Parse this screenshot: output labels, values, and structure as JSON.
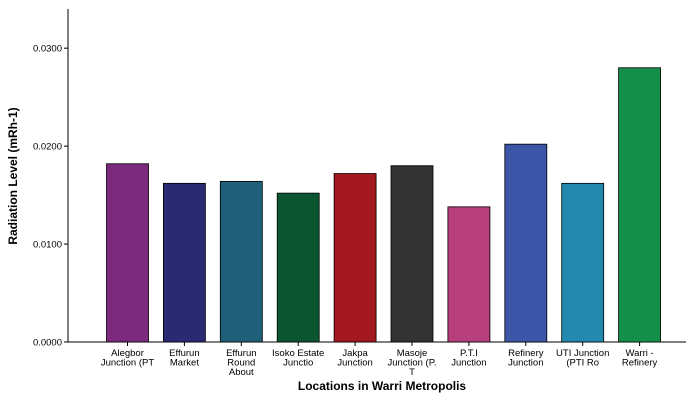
{
  "chart_data": {
    "type": "bar",
    "xlabel": "Locations in Warri Metropolis",
    "ylabel": "Radiation Level (mRh-1)",
    "ylim": [
      0,
      0.034
    ],
    "yticks": [
      "0.0000",
      "0.0100",
      "0.0200",
      "0.0300"
    ],
    "grid": false,
    "categories": [
      [
        "Alegbor",
        "Junction (PT"
      ],
      [
        "Effurun",
        "Market"
      ],
      [
        "Effurun",
        "Round",
        "About"
      ],
      [
        "Isoko Estate",
        "Junctio"
      ],
      [
        "Jakpa",
        "Junction"
      ],
      [
        "Masoje",
        "Junction (P.",
        "T"
      ],
      [
        "P.T.I",
        "Junction"
      ],
      [
        "Refinery",
        "Junction"
      ],
      [
        "UTI Junction",
        "(PTI Ro"
      ],
      [
        "Warri -",
        "Refinery"
      ]
    ],
    "values": [
      0.0182,
      0.0162,
      0.0164,
      0.0152,
      0.0172,
      0.018,
      0.0138,
      0.0202,
      0.0162,
      0.028
    ],
    "colors": [
      "#7b2a7e",
      "#2a2a72",
      "#1f5f78",
      "#0b5530",
      "#a3181e",
      "#333333",
      "#b73f7c",
      "#3d55a6",
      "#2389ae",
      "#148f4a"
    ]
  }
}
